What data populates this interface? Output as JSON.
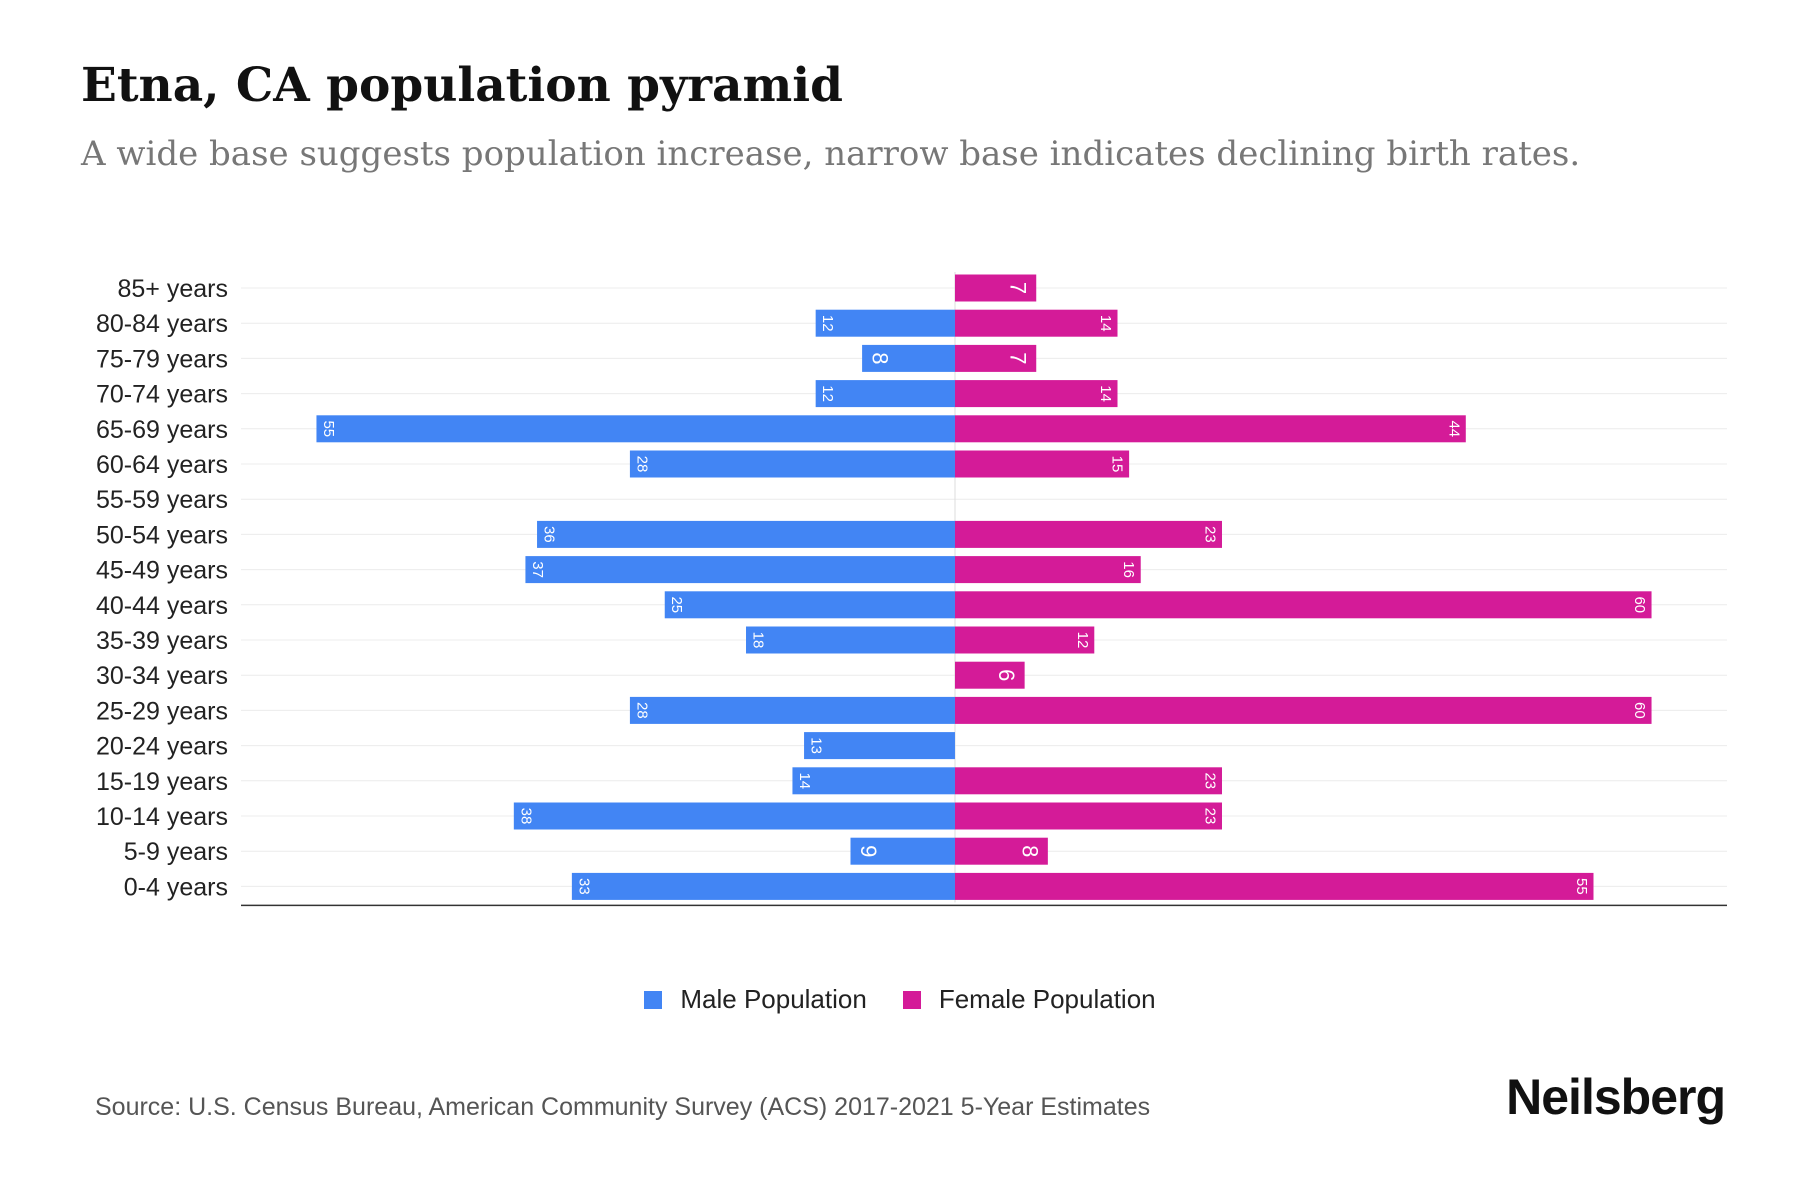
{
  "header": {
    "title": "Etna, CA population pyramid",
    "subtitle": "A wide base suggests population increase, narrow base indicates declining birth rates."
  },
  "legend": {
    "male_label": "Male Population",
    "female_label": "Female Population"
  },
  "footer": {
    "source": "Source: U.S. Census Bureau, American Community Survey (ACS) 2017-2021 5-Year Estimates",
    "brand": "Neilsberg"
  },
  "colors": {
    "male": "#4285f4",
    "female": "#d41b98"
  },
  "chart_data": {
    "type": "bar",
    "orientation": "horizontal-pyramid",
    "title": "Etna, CA population pyramid",
    "categories": [
      "85+ years",
      "80-84 years",
      "75-79 years",
      "70-74 years",
      "65-69 years",
      "60-64 years",
      "55-59 years",
      "50-54 years",
      "45-49 years",
      "40-44 years",
      "35-39 years",
      "30-34 years",
      "25-29 years",
      "20-24 years",
      "15-19 years",
      "10-14 years",
      "5-9 years",
      "0-4 years"
    ],
    "series": [
      {
        "name": "Male Population",
        "values": [
          0,
          12,
          8,
          12,
          55,
          28,
          0,
          36,
          37,
          25,
          18,
          0,
          28,
          13,
          14,
          38,
          9,
          33
        ]
      },
      {
        "name": "Female Population",
        "values": [
          7,
          14,
          7,
          14,
          44,
          15,
          0,
          23,
          16,
          60,
          12,
          6,
          60,
          0,
          23,
          23,
          8,
          55
        ]
      }
    ],
    "xlim": [
      -61.5,
      66.5
    ],
    "grid": true,
    "legend": "bottom-center"
  }
}
